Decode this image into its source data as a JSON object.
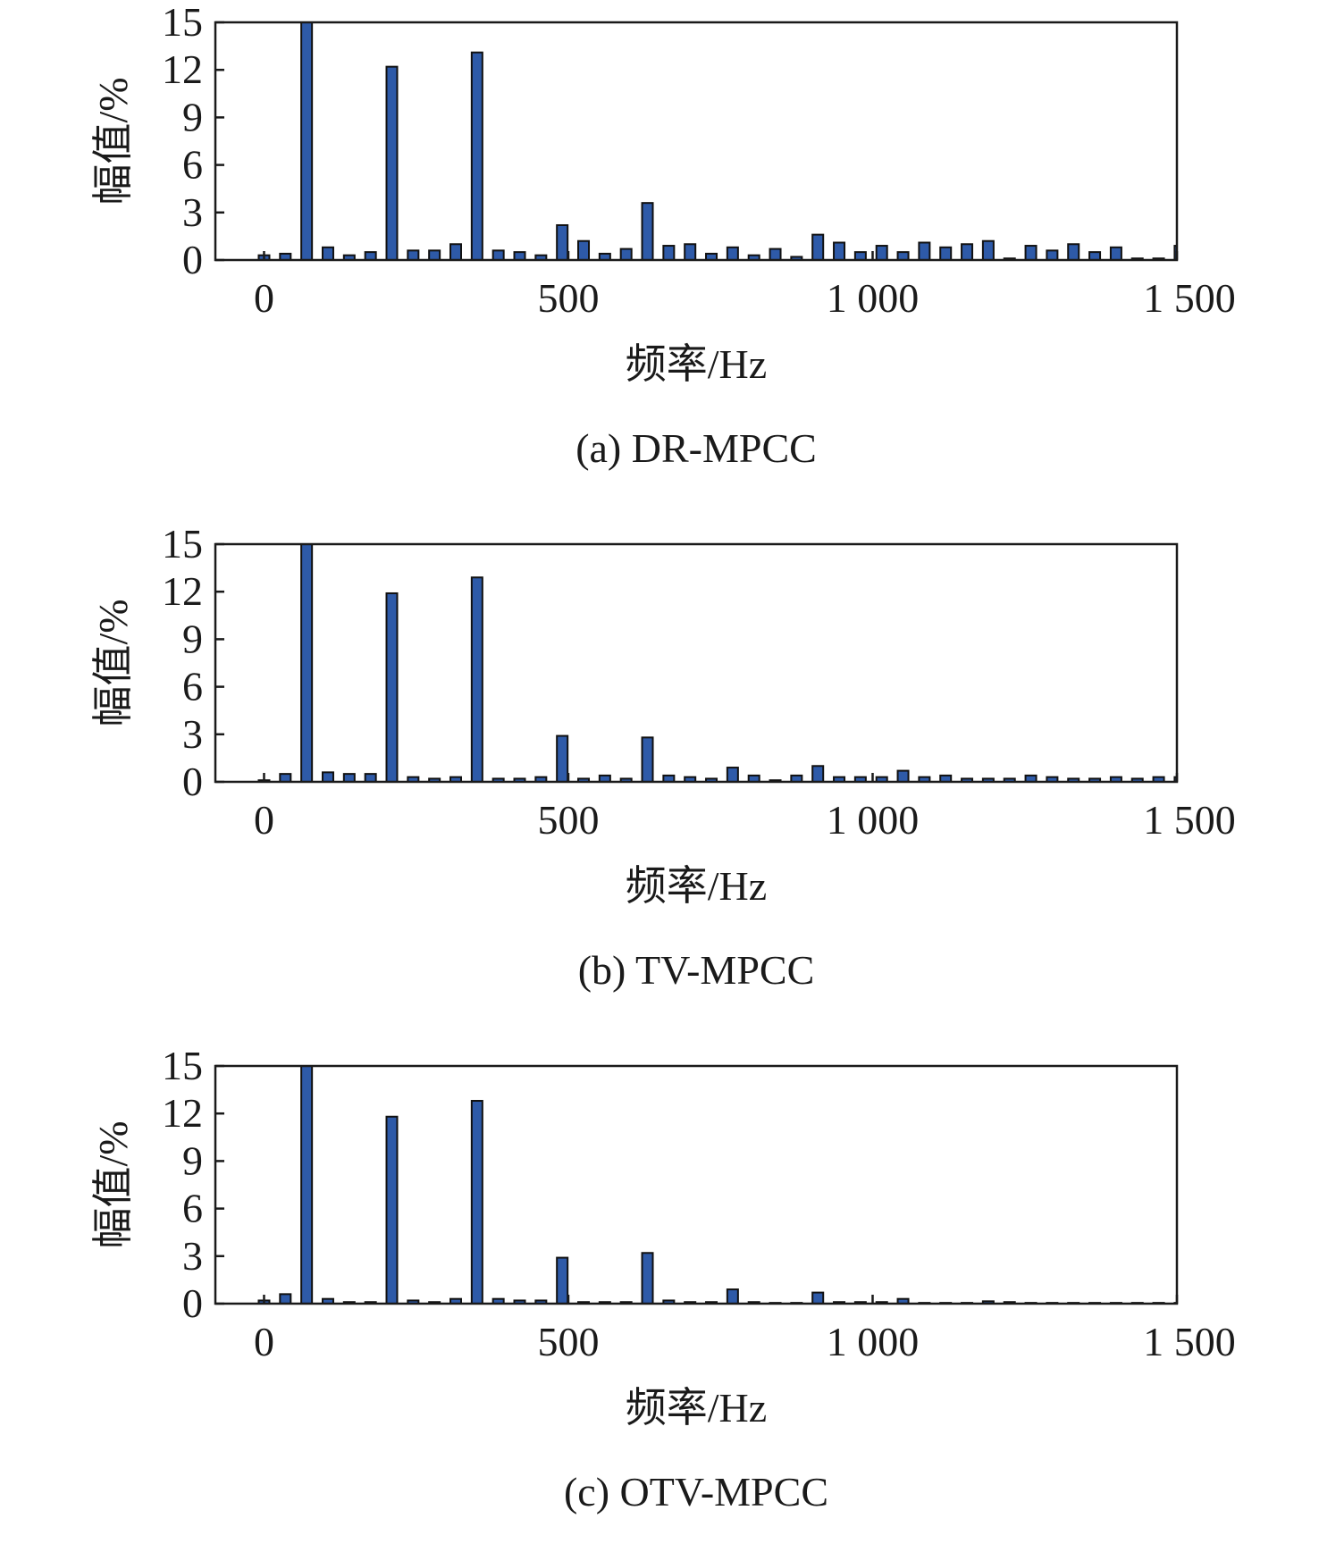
{
  "chart_data": [
    {
      "type": "bar",
      "caption": "(a) DR-MPCC",
      "xlabel": "频率/Hz",
      "ylabel": "幅值/%",
      "xlim": [
        -80,
        1500
      ],
      "ylim": [
        0,
        15
      ],
      "xticks": [
        0,
        500,
        1000,
        1500
      ],
      "xtick_labels": [
        "0",
        "500",
        "1 000",
        "1 500"
      ],
      "yticks": [
        0,
        3,
        6,
        9,
        12,
        15
      ],
      "bar_color": "#2e5aa8",
      "x": [
        0,
        35,
        70,
        105,
        140,
        175,
        210,
        245,
        280,
        315,
        350,
        385,
        420,
        455,
        490,
        525,
        560,
        595,
        630,
        665,
        700,
        735,
        770,
        805,
        840,
        875,
        910,
        945,
        980,
        1015,
        1050,
        1085,
        1120,
        1155,
        1190,
        1225,
        1260,
        1295,
        1330,
        1365,
        1400,
        1435,
        1470,
        1505
      ],
      "values": [
        0.3,
        0.4,
        15,
        0.8,
        0.3,
        0.5,
        12.2,
        0.6,
        0.6,
        1.0,
        13.1,
        0.6,
        0.5,
        0.3,
        2.2,
        1.2,
        0.4,
        0.7,
        3.6,
        0.9,
        1.0,
        0.4,
        0.8,
        0.3,
        0.7,
        0.2,
        1.6,
        1.1,
        0.5,
        0.9,
        0.5,
        1.1,
        0.8,
        1.0,
        1.2,
        0.1,
        0.9,
        0.6,
        1.0,
        0.5,
        0.8,
        0.1,
        0.1,
        0.9
      ]
    },
    {
      "type": "bar",
      "caption": "(b) TV-MPCC",
      "xlabel": "频率/Hz",
      "ylabel": "幅值/%",
      "xlim": [
        -80,
        1500
      ],
      "ylim": [
        0,
        15
      ],
      "xticks": [
        0,
        500,
        1000,
        1500
      ],
      "xtick_labels": [
        "0",
        "500",
        "1 000",
        "1 500"
      ],
      "yticks": [
        0,
        3,
        6,
        9,
        12,
        15
      ],
      "bar_color": "#2e5aa8",
      "x": [
        0,
        35,
        70,
        105,
        140,
        175,
        210,
        245,
        280,
        315,
        350,
        385,
        420,
        455,
        490,
        525,
        560,
        595,
        630,
        665,
        700,
        735,
        770,
        805,
        840,
        875,
        910,
        945,
        980,
        1015,
        1050,
        1085,
        1120,
        1155,
        1190,
        1225,
        1260,
        1295,
        1330,
        1365,
        1400,
        1435,
        1470,
        1505
      ],
      "values": [
        0.1,
        0.5,
        15,
        0.6,
        0.5,
        0.5,
        11.9,
        0.3,
        0.2,
        0.3,
        12.9,
        0.2,
        0.2,
        0.3,
        2.9,
        0.2,
        0.4,
        0.2,
        2.8,
        0.4,
        0.3,
        0.2,
        0.9,
        0.4,
        0.1,
        0.4,
        1.0,
        0.3,
        0.3,
        0.3,
        0.7,
        0.3,
        0.4,
        0.2,
        0.2,
        0.2,
        0.4,
        0.3,
        0.2,
        0.2,
        0.3,
        0.2,
        0.3,
        0.3
      ]
    },
    {
      "type": "bar",
      "caption": "(c) OTV-MPCC",
      "xlabel": "频率/Hz",
      "ylabel": "幅值/%",
      "xlim": [
        -80,
        1500
      ],
      "ylim": [
        0,
        15
      ],
      "xticks": [
        0,
        500,
        1000,
        1500
      ],
      "xtick_labels": [
        "0",
        "500",
        "1 000",
        "1 500"
      ],
      "yticks": [
        0,
        3,
        6,
        9,
        12,
        15
      ],
      "bar_color": "#2e5aa8",
      "x": [
        0,
        35,
        70,
        105,
        140,
        175,
        210,
        245,
        280,
        315,
        350,
        385,
        420,
        455,
        490,
        525,
        560,
        595,
        630,
        665,
        700,
        735,
        770,
        805,
        840,
        875,
        910,
        945,
        980,
        1015,
        1050,
        1085,
        1120,
        1155,
        1190,
        1225,
        1260,
        1295,
        1330,
        1365,
        1400,
        1435,
        1470,
        1505
      ],
      "values": [
        0.2,
        0.6,
        15,
        0.3,
        0.1,
        0.1,
        11.8,
        0.2,
        0.1,
        0.3,
        12.8,
        0.3,
        0.2,
        0.2,
        2.9,
        0.1,
        0.1,
        0.1,
        3.2,
        0.2,
        0.1,
        0.1,
        0.9,
        0.1,
        0.05,
        0.05,
        0.7,
        0.1,
        0.1,
        0.1,
        0.3,
        0.05,
        0.05,
        0.05,
        0.15,
        0.1,
        0.05,
        0.05,
        0.05,
        0.05,
        0.05,
        0.05,
        0.05,
        0.05
      ]
    }
  ]
}
